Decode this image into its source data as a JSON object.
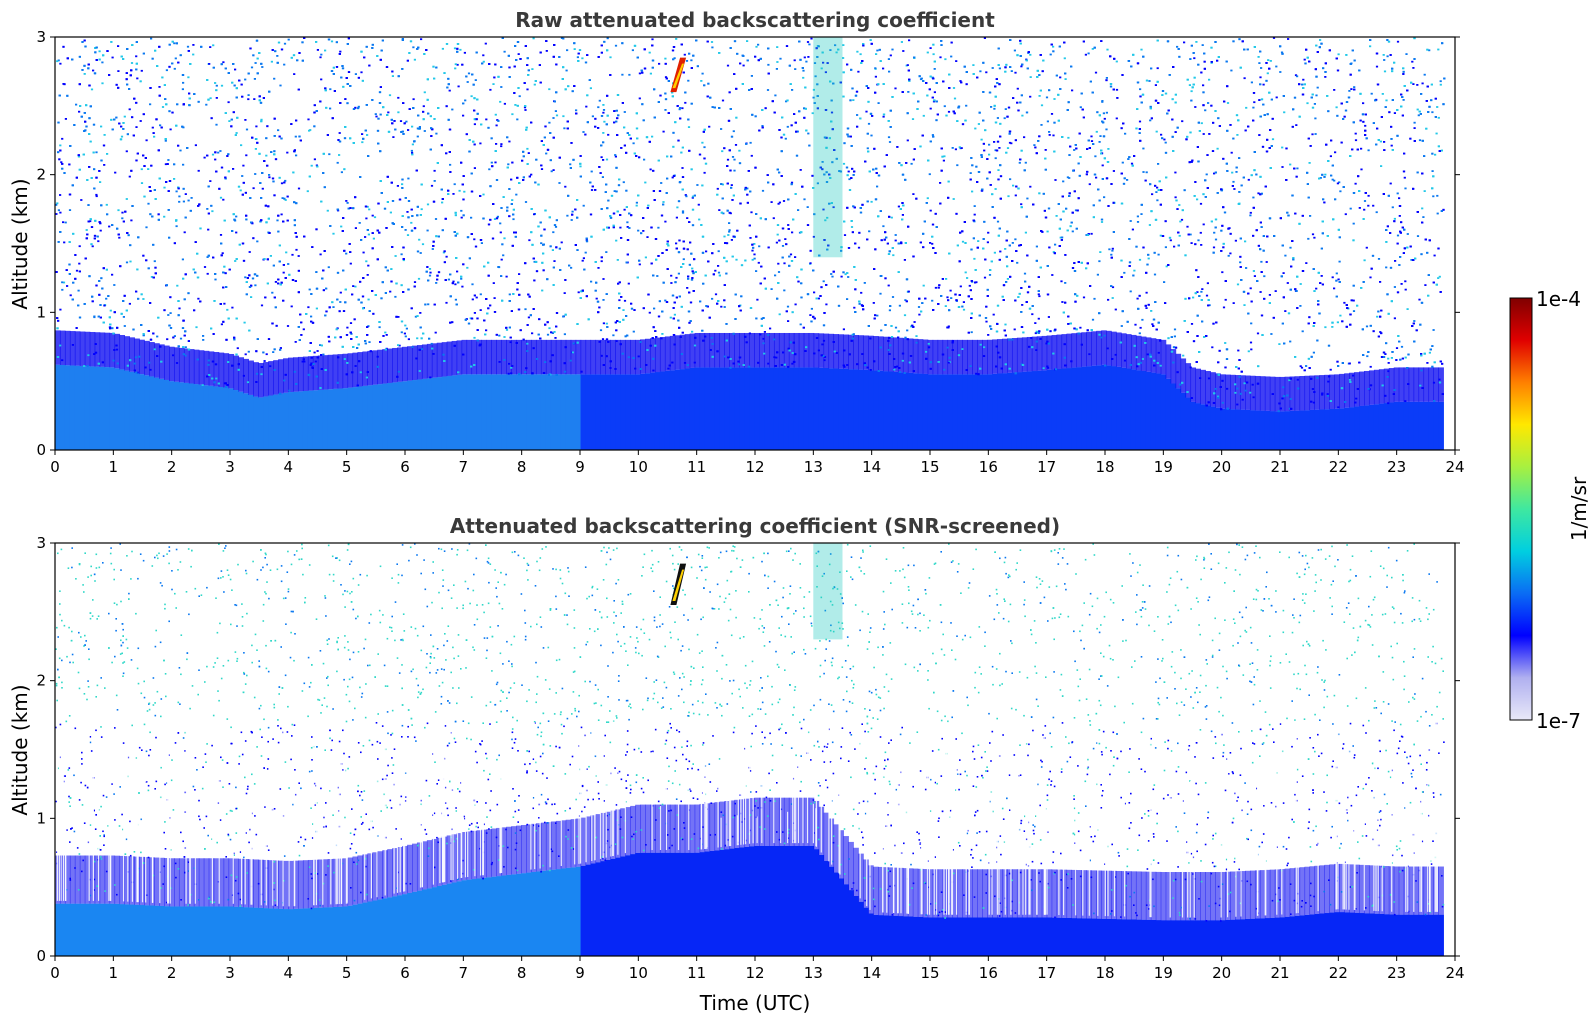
{
  "chart_data": [
    {
      "type": "heatmap",
      "title": "Raw attenuated backscattering coefficient",
      "xlabel": "",
      "ylabel": "Altitude (km)",
      "xlim": [
        0,
        24
      ],
      "ylim": [
        0,
        3
      ],
      "xticks": [
        "0",
        "1",
        "2",
        "3",
        "4",
        "5",
        "6",
        "7",
        "8",
        "9",
        "10",
        "11",
        "12",
        "13",
        "14",
        "15",
        "16",
        "17",
        "18",
        "19",
        "20",
        "21",
        "22",
        "23",
        "24"
      ],
      "yticks": [
        "0",
        "1",
        "2",
        "3"
      ],
      "data_end_x": 23.8,
      "boundary_layer_top_km": {
        "x": [
          0,
          1,
          2,
          3,
          3.5,
          4,
          5,
          6,
          7,
          8,
          9,
          10,
          11,
          12,
          13,
          14,
          15,
          16,
          17,
          18,
          19,
          19.5,
          20,
          21,
          22,
          23,
          23.8
        ],
        "y": [
          0.62,
          0.6,
          0.5,
          0.45,
          0.38,
          0.42,
          0.45,
          0.5,
          0.55,
          0.55,
          0.55,
          0.55,
          0.6,
          0.6,
          0.6,
          0.58,
          0.55,
          0.55,
          0.58,
          0.62,
          0.55,
          0.35,
          0.3,
          0.28,
          0.3,
          0.35,
          0.35
        ]
      },
      "features": [
        {
          "kind": "high-backscatter streak",
          "x": [
            10.55,
            10.75
          ],
          "y": [
            2.6,
            2.85
          ]
        },
        {
          "kind": "vertical enhanced column",
          "x": [
            13.0,
            13.5
          ],
          "y": [
            1.4,
            3.0
          ]
        }
      ]
    },
    {
      "type": "heatmap",
      "title": "Attenuated backscattering coefficient (SNR-screened)",
      "xlabel": "Time (UTC)",
      "ylabel": "Altitude (km)",
      "xlim": [
        0,
        24
      ],
      "ylim": [
        0,
        3
      ],
      "xticks": [
        "0",
        "1",
        "2",
        "3",
        "4",
        "5",
        "6",
        "7",
        "8",
        "9",
        "10",
        "11",
        "12",
        "13",
        "14",
        "15",
        "16",
        "17",
        "18",
        "19",
        "20",
        "21",
        "22",
        "23",
        "24"
      ],
      "yticks": [
        "0",
        "1",
        "2",
        "3"
      ],
      "data_end_x": 23.8,
      "boundary_layer_top_km": {
        "x": [
          0,
          1,
          2,
          3,
          4,
          5,
          6,
          7,
          8,
          9,
          10,
          11,
          12,
          13,
          14,
          15,
          16,
          17,
          18,
          19,
          20,
          21,
          22,
          23,
          23.8
        ],
        "y": [
          0.38,
          0.38,
          0.36,
          0.36,
          0.34,
          0.36,
          0.45,
          0.55,
          0.6,
          0.65,
          0.75,
          0.75,
          0.8,
          0.8,
          0.3,
          0.28,
          0.28,
          0.28,
          0.27,
          0.26,
          0.26,
          0.28,
          0.32,
          0.3,
          0.3
        ]
      },
      "features": [
        {
          "kind": "high-backscatter streak",
          "x": [
            10.55,
            10.75
          ],
          "y": [
            2.55,
            2.85
          ]
        },
        {
          "kind": "vertical enhanced column",
          "x": [
            13.0,
            13.5
          ],
          "y": [
            2.3,
            3.0
          ]
        }
      ]
    }
  ],
  "colorbar": {
    "label": "1/m/sr",
    "max_label": "1e-4",
    "min_label": "1e-7",
    "scale": "log",
    "colors": [
      "#e8e8f8",
      "#b0b0f0",
      "#0000ff",
      "#0a6cf4",
      "#00cfe0",
      "#3fe8a0",
      "#a8f040",
      "#ffe800",
      "#ff8000",
      "#e00000",
      "#800000"
    ]
  }
}
